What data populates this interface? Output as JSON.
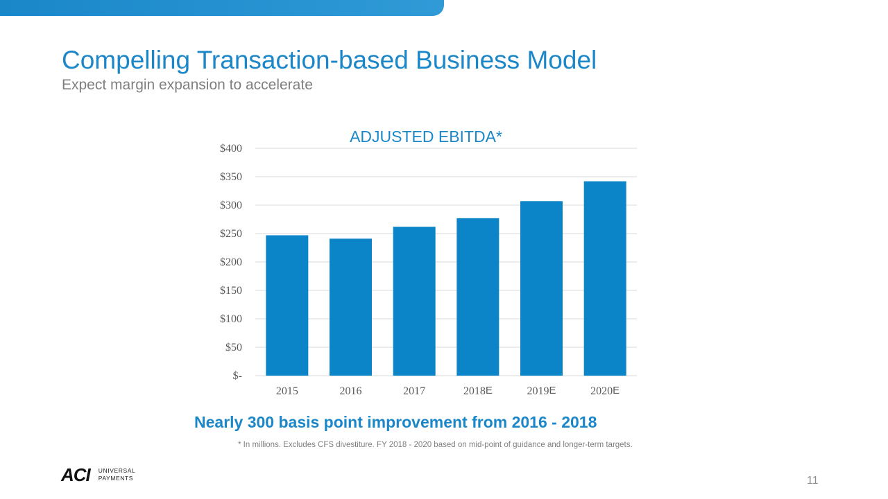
{
  "slide": {
    "title": "Compelling Transaction-based Business Model",
    "subtitle": "Expect margin expansion to accelerate",
    "callout": "Nearly 300 basis point improvement from 2016 - 2018",
    "footnote": "* In millions. Excludes CFS divestiture. FY 2018 - 2020 based on mid-point of guidance and longer-term targets.",
    "page_number": "11"
  },
  "logo": {
    "mark": "ACI",
    "line1": "UNIVERSAL",
    "line2": "PAYMENTS"
  },
  "colors": {
    "accent": "#1b87c9",
    "bar": "#0c84c8",
    "gray_text": "#7f7f7f"
  },
  "chart_data": {
    "type": "bar",
    "title": "ADJUSTED EBITDA*",
    "categories": [
      "2015",
      "2016",
      "2017",
      "2018",
      "2019",
      "2020"
    ],
    "category_suffixes": [
      "",
      "",
      "",
      "E",
      "E",
      "E"
    ],
    "values": [
      247,
      241,
      262,
      277,
      307,
      342
    ],
    "ylim": [
      0,
      400
    ],
    "yticks": [
      0,
      50,
      100,
      150,
      200,
      250,
      300,
      350,
      400
    ],
    "ytick_labels": [
      "$-",
      "$50",
      "$100",
      "$150",
      "$200",
      "$250",
      "$300",
      "$350",
      "$400"
    ],
    "xlabel": "",
    "ylabel": "",
    "grid": true,
    "legend": "none"
  }
}
